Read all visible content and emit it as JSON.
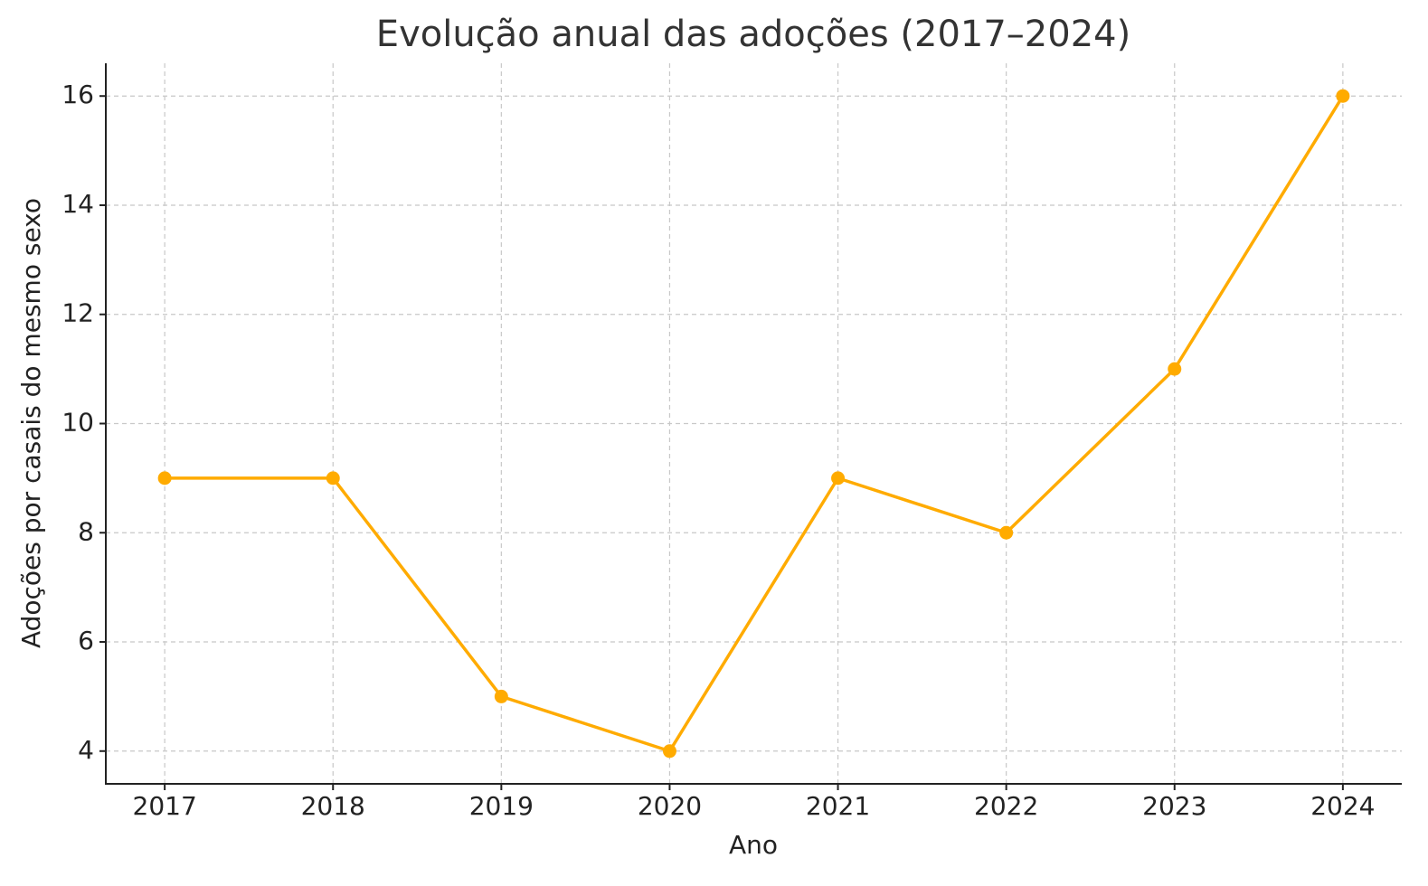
{
  "chart_data": {
    "type": "line",
    "title": "Evolução anual das adoções (2017–2024)",
    "x_label": "Ano",
    "y_label": "Adoções por casais do mesmo sexo",
    "x": [
      2017,
      2018,
      2019,
      2020,
      2021,
      2022,
      2023,
      2024
    ],
    "series": [
      {
        "color": "#ffab00",
        "values": [
          9,
          9,
          5,
          4,
          9,
          8,
          11,
          16
        ]
      }
    ],
    "xlim": [
      2016.65,
      2024.35
    ],
    "xticks": [
      2017,
      2018,
      2019,
      2020,
      2021,
      2022,
      2023,
      2024
    ],
    "ylim": [
      3.4,
      16.6
    ],
    "yticks": [
      4,
      6,
      8,
      10,
      12,
      14,
      16
    ],
    "grid": true
  }
}
